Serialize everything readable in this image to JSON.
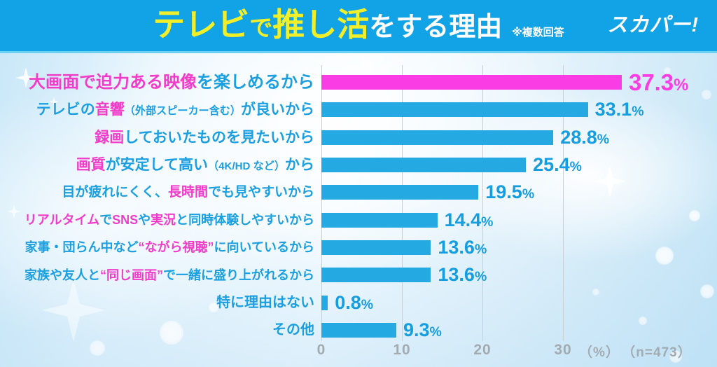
{
  "header": {
    "title_segments": [
      {
        "text": "テレビ",
        "style": "yellow-lg"
      },
      {
        "text": "で",
        "style": "yellow-sm"
      },
      {
        "text": "推し活",
        "style": "yellow-lg"
      },
      {
        "text": "をする理由",
        "style": "white-md"
      }
    ],
    "note": "※複数回答",
    "logo": "スカパー!"
  },
  "chart_data": {
    "type": "bar",
    "orientation": "horizontal",
    "title": "テレビで推し活をする理由",
    "note": "複数回答",
    "sample": "n=473",
    "unit": "%",
    "categories": [
      "大画面で迫力ある映像を楽しめるから",
      "テレビの音響（外部スピーカー含む）が良いから",
      "録画しておいたものを見たいから",
      "画質が安定して高い（4K/HD など）から",
      "目が疲れにくく、長時間でも見やすいから",
      "リアルタイムでSNSや実況と同時体験しやすいから",
      "家事・団らん中など“ながら視聴”に向いているから",
      "家族や友人と“同じ画面”で一緒に盛り上がれるから",
      "特に理由はない",
      "その他"
    ],
    "values": [
      37.3,
      33.1,
      28.8,
      25.4,
      19.5,
      14.4,
      13.6,
      13.6,
      0.8,
      9.3
    ],
    "highlight_index": 0,
    "x_ticks": [
      0,
      10,
      20,
      30
    ],
    "xlim": [
      0,
      40
    ],
    "grid": true,
    "legend": "none",
    "colors": {
      "bar": "#25a9e2",
      "highlight_bar": "#f93ce3",
      "label_blue": "#1b9fe0",
      "label_pink": "#f23cc9",
      "axis_gray": "#a3abb1",
      "header_blue": "#12a2e6",
      "title_yellow": "#f1ef29"
    }
  },
  "rows": [
    {
      "segments": [
        {
          "text": "大画面で迫力ある映像",
          "color": "pink"
        },
        {
          "text": "を楽しめるから",
          "color": "blue"
        }
      ],
      "value": "37.3",
      "unit": "%",
      "highlight": true
    },
    {
      "segments": [
        {
          "text": "テレビの",
          "color": "blue"
        },
        {
          "text": "音響",
          "color": "pink"
        },
        {
          "text": "（外部スピーカー含む）",
          "color": "blue",
          "small": true
        },
        {
          "text": "が良いから",
          "color": "blue"
        }
      ],
      "value": "33.1",
      "unit": "%",
      "highlight": false
    },
    {
      "segments": [
        {
          "text": "録画",
          "color": "pink"
        },
        {
          "text": "しておいたものを見たいから",
          "color": "blue"
        }
      ],
      "value": "28.8",
      "unit": "%",
      "highlight": false
    },
    {
      "segments": [
        {
          "text": "画質",
          "color": "pink"
        },
        {
          "text": "が安定して高い",
          "color": "blue"
        },
        {
          "text": "（4K/HD など）",
          "color": "blue",
          "small": true
        },
        {
          "text": "から",
          "color": "blue"
        }
      ],
      "value": "25.4",
      "unit": "%",
      "highlight": false
    },
    {
      "segments": [
        {
          "text": "目が疲れにくく、",
          "color": "blue"
        },
        {
          "text": "長時間",
          "color": "pink"
        },
        {
          "text": "でも見やすいから",
          "color": "blue"
        }
      ],
      "value": "19.5",
      "unit": "%",
      "highlight": false
    },
    {
      "segments": [
        {
          "text": "リアルタイム",
          "color": "pink"
        },
        {
          "text": "で",
          "color": "blue"
        },
        {
          "text": "SNS",
          "color": "pink"
        },
        {
          "text": "や",
          "color": "blue"
        },
        {
          "text": "実況",
          "color": "pink"
        },
        {
          "text": "と同時体験しやすいから",
          "color": "blue"
        }
      ],
      "value": "14.4",
      "unit": "%",
      "highlight": false
    },
    {
      "segments": [
        {
          "text": "家事・団らん中など",
          "color": "blue"
        },
        {
          "text": "“ながら視聴”",
          "color": "pink"
        },
        {
          "text": "に向いているから",
          "color": "blue"
        }
      ],
      "value": "13.6",
      "unit": "%",
      "highlight": false
    },
    {
      "segments": [
        {
          "text": "家族や友人と",
          "color": "blue"
        },
        {
          "text": "“同じ画面”",
          "color": "pink"
        },
        {
          "text": "で一緒に盛り上がれるから",
          "color": "blue"
        }
      ],
      "value": "13.6",
      "unit": "%",
      "highlight": false
    },
    {
      "segments": [
        {
          "text": "特に理由はない",
          "color": "blue"
        }
      ],
      "value": "0.8",
      "unit": "%",
      "highlight": false
    },
    {
      "segments": [
        {
          "text": "その他",
          "color": "blue"
        }
      ],
      "value": "9.3",
      "unit": "%",
      "highlight": false
    }
  ],
  "axis": {
    "ticks": [
      "0",
      "10",
      "20",
      "30"
    ],
    "unit_label": "（%）",
    "n_label": "（n=473）"
  }
}
